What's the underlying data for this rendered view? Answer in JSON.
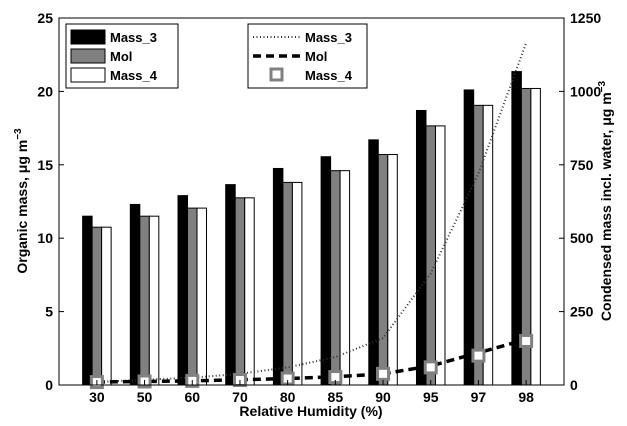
{
  "chart_data": {
    "type": "bar",
    "categories": [
      "30",
      "50",
      "60",
      "70",
      "80",
      "85",
      "90",
      "95",
      "97",
      "98"
    ],
    "xlabel": "Relative Humidity (%)",
    "ylabel_left": "Organic mass, μg m",
    "ylabel_left_sup": "−3",
    "ylabel_right": "Condensed mass incl. water, μg m",
    "ylabel_right_sup": "−3",
    "ylim_left": [
      0,
      25
    ],
    "yticks_left": [
      0,
      5,
      10,
      15,
      20,
      25
    ],
    "ylim_right": [
      0,
      1250
    ],
    "yticks_right": [
      0,
      250,
      500,
      750,
      1000,
      1250
    ],
    "grid": false,
    "bar_series": [
      {
        "name": "Mass_3",
        "color": "#000000",
        "values": [
          11.5,
          12.3,
          12.9,
          13.65,
          14.75,
          15.55,
          16.7,
          18.7,
          20.1,
          21.35
        ]
      },
      {
        "name": "Mol",
        "color": "#808080",
        "values": [
          10.75,
          11.5,
          12.05,
          12.75,
          13.8,
          14.6,
          15.7,
          17.65,
          19.05,
          20.2
        ]
      },
      {
        "name": "Mass_4",
        "color": "#ffffff",
        "values": [
          10.75,
          11.5,
          12.05,
          12.75,
          13.8,
          14.6,
          15.7,
          17.65,
          19.05,
          20.2
        ]
      }
    ],
    "line_series": [
      {
        "name": "Mass_3",
        "style": "dotted",
        "values": [
          10,
          18,
          25,
          38,
          60,
          95,
          160,
          380,
          720,
          1165
        ]
      },
      {
        "name": "Mol",
        "style": "dashed",
        "values": [
          10,
          12,
          14,
          18,
          22,
          28,
          38,
          65,
          110,
          155
        ]
      },
      {
        "name": "Mass_4",
        "style": "square-markers",
        "values": [
          10,
          12,
          14,
          17,
          22,
          27,
          38,
          60,
          100,
          150
        ]
      }
    ],
    "legend_bars": {
      "placement": "top-left",
      "entries": [
        "Mass_3",
        "Mol",
        "Mass_4"
      ]
    },
    "legend_lines": {
      "placement": "top-center",
      "entries": [
        "Mass_3",
        "Mol",
        "Mass_4"
      ]
    }
  }
}
